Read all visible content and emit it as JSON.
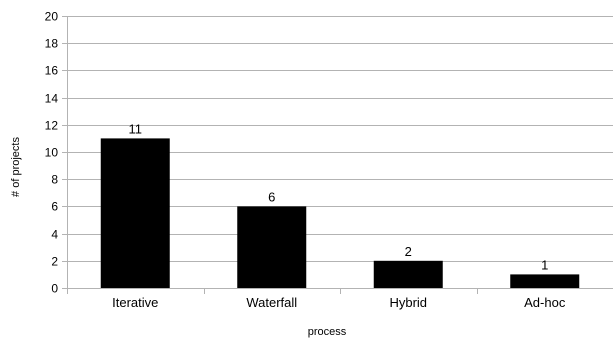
{
  "chart_data": {
    "type": "bar",
    "categories": [
      "Iterative",
      "Waterfall",
      "Hybrid",
      "Ad-hoc"
    ],
    "values": [
      11,
      6,
      2,
      1
    ],
    "data_labels": [
      "11",
      "6",
      "2",
      "1"
    ],
    "xlabel": "process",
    "ylabel": "# of projects",
    "ylim": [
      0,
      20
    ],
    "yticks": [
      "0",
      "2",
      "4",
      "6",
      "8",
      "10",
      "12",
      "14",
      "16",
      "18",
      "20"
    ],
    "grid": true,
    "bar_color": "#000000",
    "grid_color": "#b3b3b3",
    "axis_color": "#b3b3b3"
  }
}
